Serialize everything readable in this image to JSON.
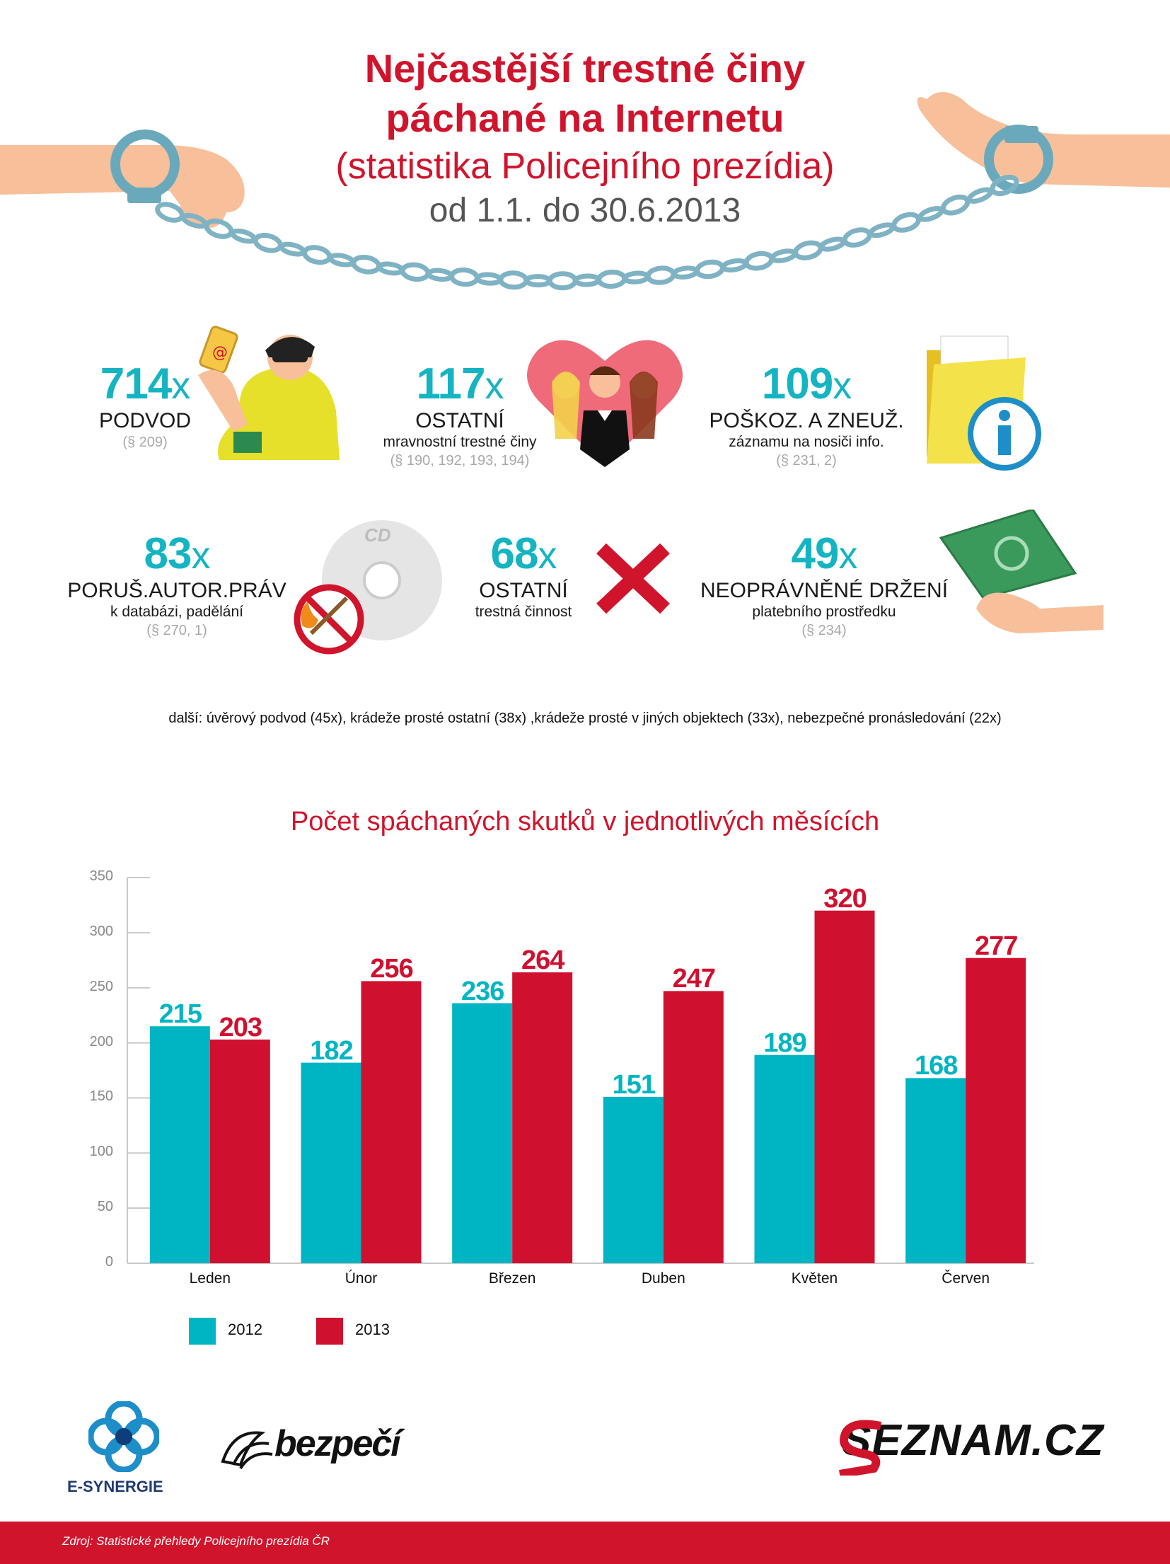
{
  "header": {
    "title_line1": "Nejčastější trestné činy",
    "title_line2": "páchané na Internetu",
    "subtitle": "(statistika Policejního prezídia)",
    "period": "od 1.1. do 30.6.2013"
  },
  "stats": [
    {
      "count": "714",
      "suffix": "x",
      "name": "PODVOD",
      "desc": "",
      "law": "(§ 209)"
    },
    {
      "count": "117",
      "suffix": "x",
      "name": "OSTATNÍ",
      "desc": "mravnostní trestné činy",
      "law": "(§ 190, 192, 193, 194)"
    },
    {
      "count": "109",
      "suffix": "x",
      "name": "POŠKOZ. A ZNEUŽ.",
      "desc": "záznamu na nosiči info.",
      "law": "(§ 231, 2)"
    },
    {
      "count": "83",
      "suffix": "x",
      "name": "PORUŠ.AUTOR.PRÁV",
      "desc": "k databázi, padělání",
      "law": "(§ 270, 1)"
    },
    {
      "count": "68",
      "suffix": "x",
      "name": "OSTATNÍ",
      "desc": "trestná činnost",
      "law": ""
    },
    {
      "count": "49",
      "suffix": "x",
      "name": "NEOPRÁVNĚNÉ DRŽENÍ",
      "desc": "platebního prostředku",
      "law": "(§ 234)"
    }
  ],
  "icons": {
    "fraud": "thief-icon",
    "moral": "heart-couple-icon",
    "data": "folder-info-icon",
    "copyright": "cd-no-fire-icon",
    "other": "cross-icon",
    "payment": "banknote-hand-icon"
  },
  "illustration_text": {
    "cd_label": "CD",
    "phone_symbol": "@"
  },
  "more_text": "další: úvěrový podvod (45x), krádeže prosté ostatní (38x) ,krádeže prosté v jiných objektech (33x), nebezpečné pronásledování (22x)",
  "chart_data": {
    "type": "bar",
    "title": "Počet spáchaných skutků v jednotlivých měsících",
    "categories": [
      "Leden",
      "Únor",
      "Březen",
      "Duben",
      "Květen",
      "Červen"
    ],
    "series": [
      {
        "name": "2012",
        "values": [
          215,
          182,
          236,
          151,
          189,
          168
        ],
        "color": "#00b5c3"
      },
      {
        "name": "2013",
        "values": [
          203,
          256,
          264,
          247,
          320,
          277
        ],
        "color": "#d0102f"
      }
    ],
    "yticks": [
      0,
      50,
      100,
      150,
      200,
      250,
      300,
      350
    ],
    "ylim": [
      0,
      350
    ],
    "xlabel": "",
    "ylabel": "",
    "grid": false,
    "legend": "bottom-left"
  },
  "logos": {
    "esynergie": "E-SYNERGIE",
    "bezpeci": "bezpečí",
    "seznam": "SEZNAM.CZ"
  },
  "footer": {
    "source": "Zdroj: Statistické přehledy Policejního prezídia ČR"
  },
  "colors": {
    "red": "#d0142c",
    "teal": "#15b4c2",
    "chain": "#7fb3c4"
  }
}
